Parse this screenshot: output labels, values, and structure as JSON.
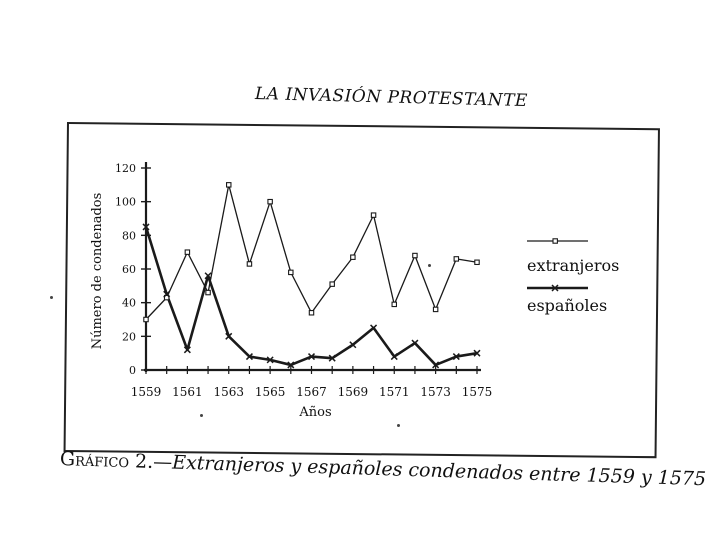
{
  "page": {
    "running_head": "LA INVASIÓN PROTESTANTE",
    "caption_label": "Gráfico 2.—",
    "caption_text": "Extranjeros y españoles condenados entre 1559 y 1575"
  },
  "chart_data": {
    "type": "line",
    "title": "",
    "xlabel": "Años",
    "ylabel": "Número de condenados",
    "ylim": [
      0,
      120
    ],
    "yticks": [
      0,
      20,
      40,
      60,
      80,
      100,
      120
    ],
    "xtick_labels": [
      "1559",
      "1561",
      "1563",
      "1565",
      "1567",
      "1569",
      "1571",
      "1573",
      "1575"
    ],
    "x": [
      1559,
      1560,
      1561,
      1562,
      1563,
      1564,
      1565,
      1566,
      1567,
      1568,
      1569,
      1570,
      1571,
      1572,
      1573,
      1574,
      1575
    ],
    "legend_position": "right",
    "series": [
      {
        "name": "extranjeros",
        "marker": "square",
        "values": [
          30,
          43,
          70,
          46,
          110,
          63,
          100,
          58,
          34,
          51,
          67,
          92,
          39,
          68,
          36,
          66,
          64
        ]
      },
      {
        "name": "españoles",
        "marker": "x",
        "values": [
          85,
          45,
          12,
          56,
          20,
          8,
          6,
          3,
          8,
          7,
          15,
          25,
          8,
          16,
          3,
          8,
          10
        ]
      }
    ]
  }
}
